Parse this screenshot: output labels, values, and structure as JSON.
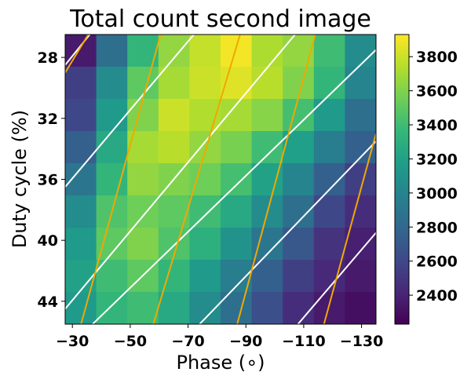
{
  "chart_data": {
    "type": "heatmap",
    "title": "Total count second image",
    "xlabel": "Phase (∘)",
    "ylabel": "Duty cycle (%)",
    "x": [
      -30,
      -35,
      -40,
      -45,
      -50,
      -55,
      -60,
      -65,
      -70,
      -75,
      -80,
      -85,
      -90,
      -95,
      -100,
      -105,
      -110,
      -115,
      -120,
      -125,
      -130
    ],
    "y": [
      27,
      28,
      29,
      30,
      31,
      32,
      33,
      34,
      35,
      36,
      37,
      38,
      39,
      40,
      41,
      42,
      43,
      44,
      45
    ],
    "xlim": [
      -27.5,
      -135
    ],
    "ylim": [
      45.5,
      26.5
    ],
    "xticks": [
      -30,
      -50,
      -70,
      -90,
      -110,
      -130
    ],
    "xtick_labels": [
      "−30",
      "−50",
      "−70",
      "−90",
      "−110",
      "−130"
    ],
    "yticks": [
      28,
      32,
      36,
      40,
      44
    ],
    "ytick_labels": [
      "28",
      "32",
      "36",
      "40",
      "44"
    ],
    "colorbar": {
      "colormap": "viridis",
      "range": [
        2230,
        3930
      ],
      "ticks": [
        2400,
        2600,
        2800,
        3000,
        3200,
        3400,
        3600,
        3800
      ],
      "tick_labels": [
        "2400",
        "2600",
        "2800",
        "3000",
        "3200",
        "3400",
        "3600",
        "3800"
      ]
    },
    "cell_width": 5,
    "cell_height": 2,
    "values": [
      [
        2350,
        2850,
        3350,
        3650,
        3780,
        3900,
        3720,
        3650,
        3400,
        3050
      ],
      [
        2550,
        3050,
        3500,
        3700,
        3800,
        3850,
        3750,
        3600,
        3350,
        3000
      ],
      [
        2600,
        3150,
        3600,
        3800,
        3730,
        3700,
        3620,
        3420,
        3150,
        2850
      ],
      [
        2750,
        3250,
        3700,
        3750,
        3650,
        3580,
        3400,
        3180,
        2950,
        2750
      ],
      [
        2900,
        3350,
        3650,
        3600,
        3550,
        3420,
        3200,
        3000,
        2750,
        2550
      ],
      [
        3050,
        3450,
        3550,
        3500,
        3400,
        3250,
        3050,
        2850,
        2600,
        2450
      ],
      [
        3150,
        3500,
        3600,
        3450,
        3300,
        3100,
        2900,
        2700,
        2480,
        2380
      ],
      [
        3200,
        3400,
        3500,
        3350,
        3150,
        2950,
        2750,
        2550,
        2420,
        2350
      ],
      [
        3150,
        3350,
        3400,
        3250,
        3050,
        2850,
        2650,
        2450,
        2350,
        2300
      ]
    ],
    "overlay_lines": [
      {
        "color": "#ffffff",
        "points": [
          [
            [
              -27.5,
              28.5
            ],
            [
              -36,
              26.5
            ]
          ],
          [
            [
              -27.5,
              36.5
            ],
            [
              -72,
              26.5
            ]
          ],
          [
            [
              -27.5,
              44.5
            ],
            [
              -107,
              26.5
            ]
          ],
          [
            [
              -37,
              45.5
            ],
            [
              -135,
              27.5
            ]
          ],
          [
            [
              -74,
              45.5
            ],
            [
              -135,
              33.5
            ]
          ],
          [
            [
              -108,
              45.5
            ],
            [
              -135,
              39.5
            ]
          ]
        ]
      },
      {
        "color": "#f0a800",
        "points": [
          [
            [
              -27.5,
              29
            ],
            [
              -35.5,
              26.5
            ]
          ],
          [
            [
              -33,
              45.5
            ],
            [
              -60.5,
              26.5
            ]
          ],
          [
            [
              -58,
              45.5
            ],
            [
              -88,
              26.5
            ]
          ],
          [
            [
              -87,
              45.5
            ],
            [
              -114,
              26.5
            ]
          ],
          [
            [
              -117,
              45.5
            ],
            [
              -135,
              33
            ]
          ]
        ]
      }
    ]
  }
}
